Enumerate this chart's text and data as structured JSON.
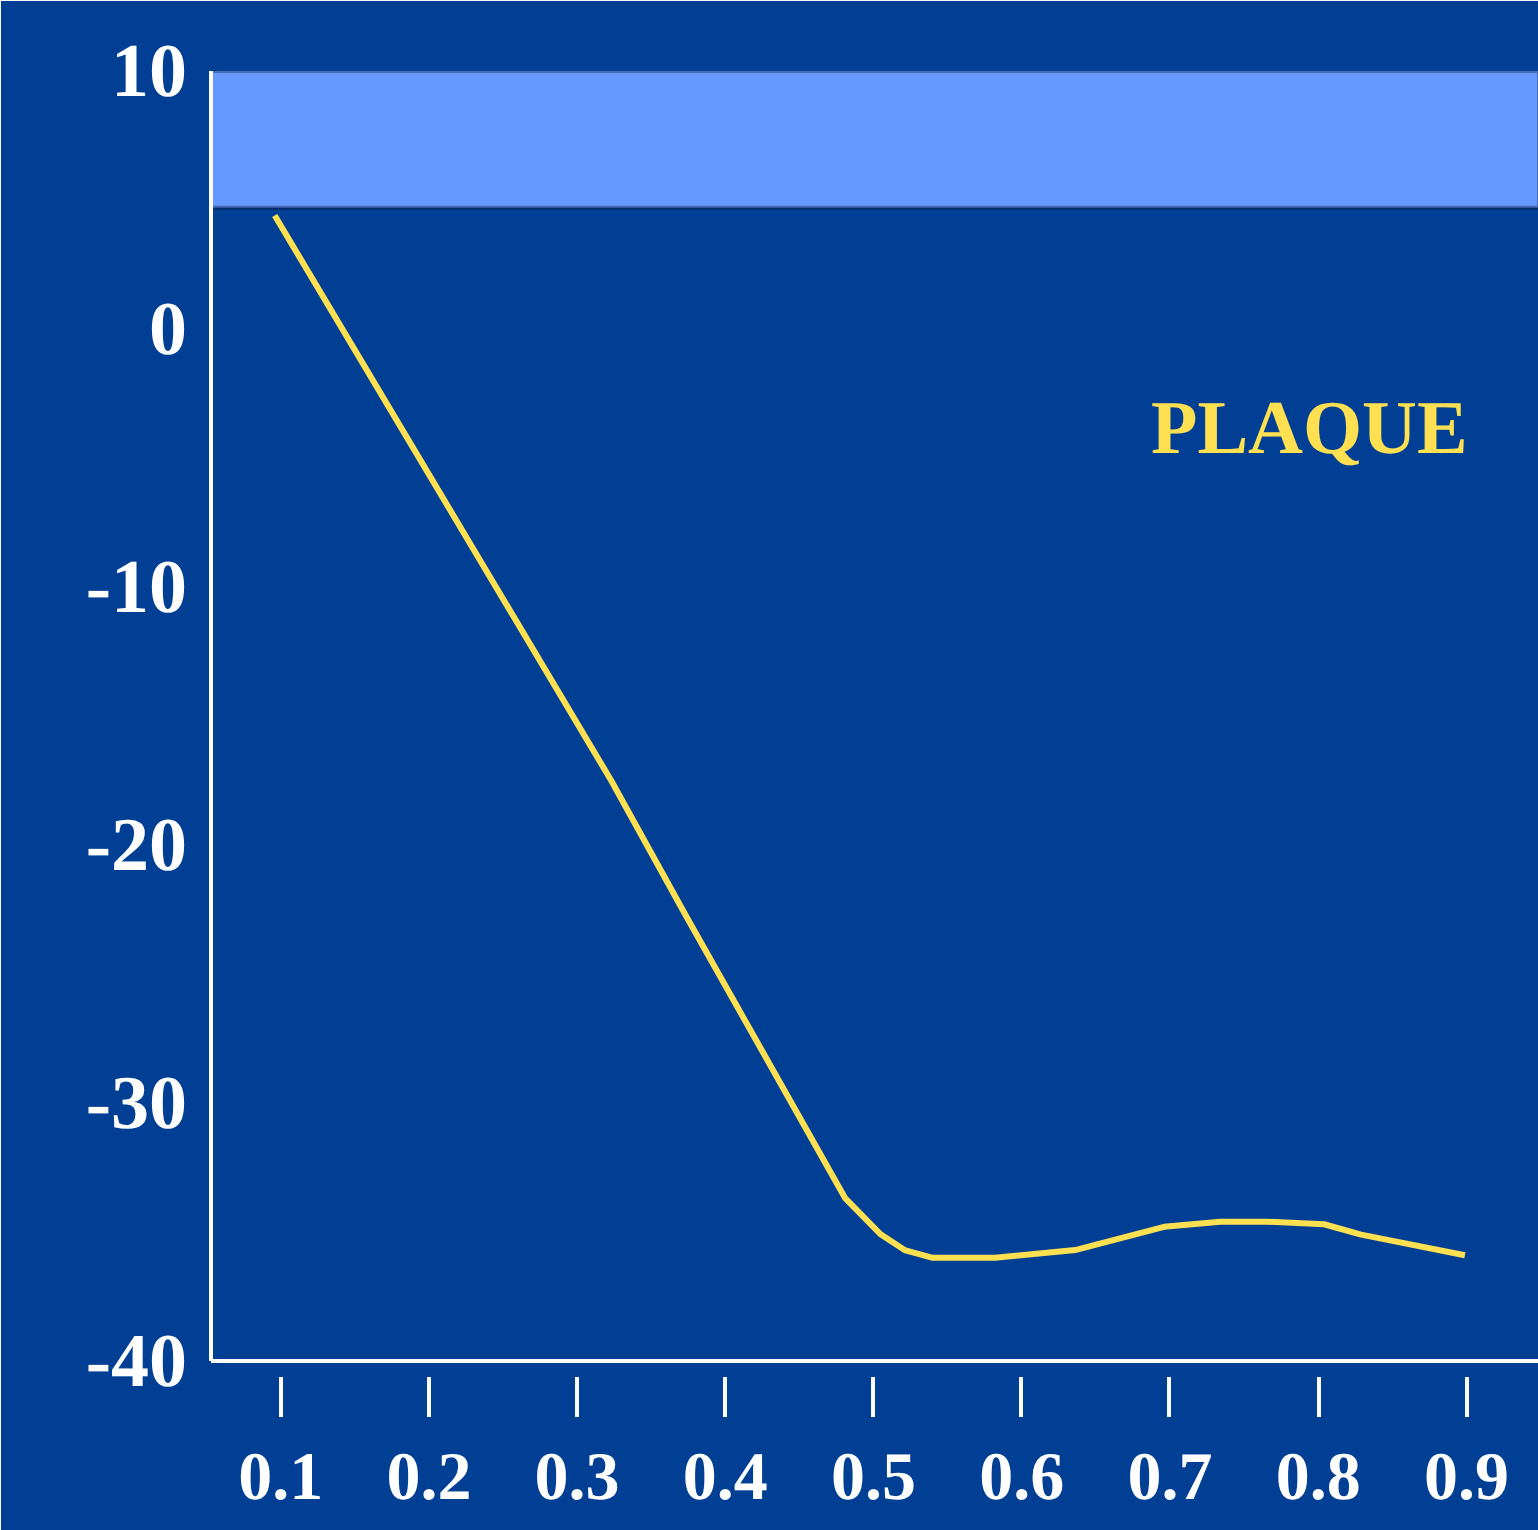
{
  "chart_data": {
    "type": "line",
    "xlim": [
      0.053,
      0.949
    ],
    "ylim": [
      -40,
      10
    ],
    "xticks": [
      0.1,
      0.2,
      0.3,
      0.4,
      0.5,
      0.6,
      0.7,
      0.8,
      0.9
    ],
    "yticks": [
      -40,
      -30,
      -20,
      -10,
      0,
      10
    ],
    "grid": false,
    "legend": false,
    "marker": "none",
    "line_style": "solid",
    "bands": [
      {
        "axis": "y",
        "from": 4.7,
        "to": 10,
        "color": "#6699ff"
      }
    ],
    "series": [
      {
        "name": "PLAQUE",
        "color": "#ffe050",
        "x": [
          0.096,
          0.323,
          0.374,
          0.481,
          0.505,
          0.521,
          0.54,
          0.582,
          0.636,
          0.696,
          0.734,
          0.765,
          0.804,
          0.829,
          0.899
        ],
        "values": [
          4.4,
          -17.5,
          -22.8,
          -33.7,
          -35.1,
          -35.7,
          -36.0,
          -36.0,
          -35.7,
          -34.8,
          -34.6,
          -34.6,
          -34.7,
          -35.1,
          -35.9
        ]
      }
    ]
  }
}
